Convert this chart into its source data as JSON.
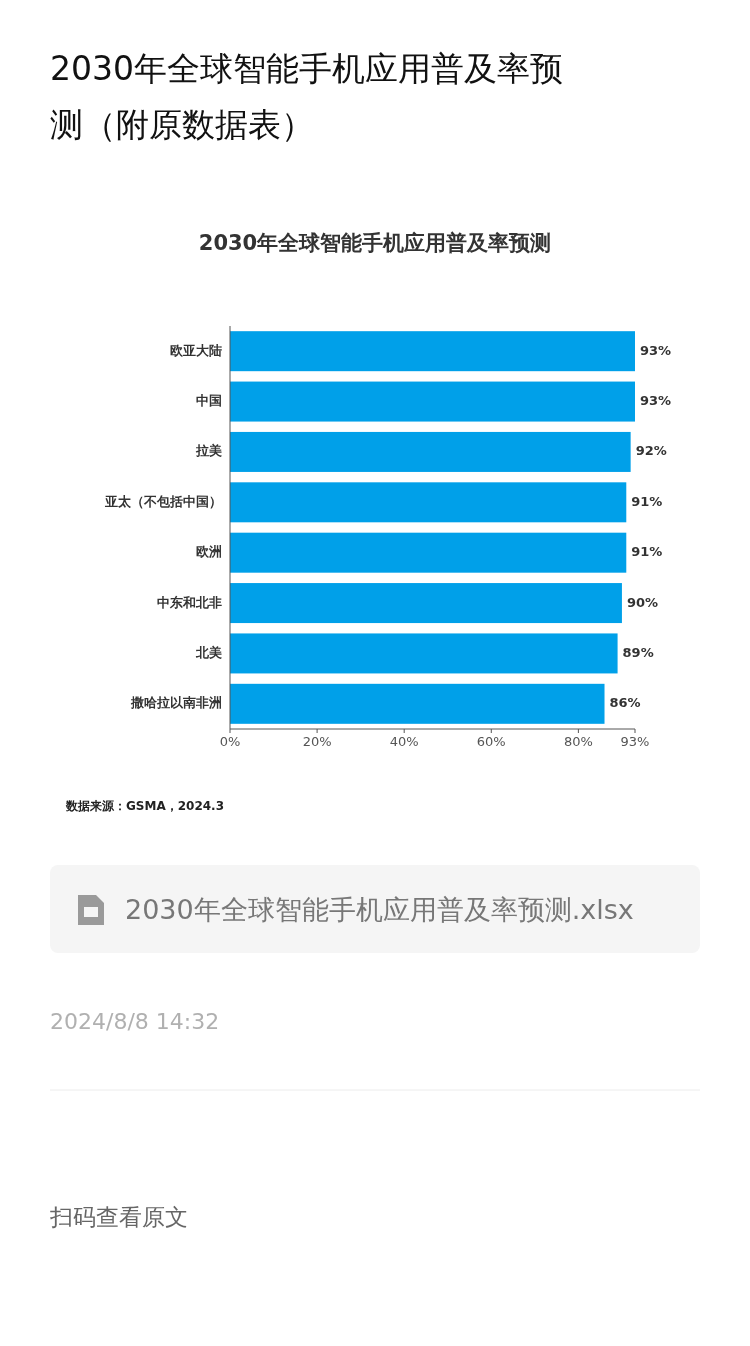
{
  "chart_data": {
    "type": "bar",
    "orientation": "horizontal",
    "title": "2030年全球智能手机应用普及率预测（附原数据表）",
    "subtitle": "2030年全球智能手机应用普及率预测",
    "categories": [
      "欧亚大陆",
      "中国",
      "拉美",
      "亚太（不包括中国）",
      "欧洲",
      "中东和北非",
      "北美",
      "撒哈拉以南非洲"
    ],
    "values": [
      93,
      93,
      92,
      91,
      91,
      90,
      89,
      86
    ],
    "value_labels": [
      "93%",
      "93%",
      "92%",
      "91%",
      "91%",
      "90%",
      "89%",
      "86%"
    ],
    "color": "#00a0e9",
    "xlim": [
      0,
      93
    ],
    "xticks": [
      {
        "value": 0,
        "label": "0%"
      },
      {
        "value": 20,
        "label": "20%"
      },
      {
        "value": 40,
        "label": "40%"
      },
      {
        "value": 60,
        "label": "60%"
      },
      {
        "value": 80,
        "label": "80%"
      },
      {
        "value": 93,
        "label": "93%"
      }
    ],
    "annotations": [
      "数据来源：GSMA，2024.3",
      "2030年全球智能手机应用普及率预测.xlsx",
      "2024/8/8 14:32",
      "扫码查看原文"
    ]
  }
}
